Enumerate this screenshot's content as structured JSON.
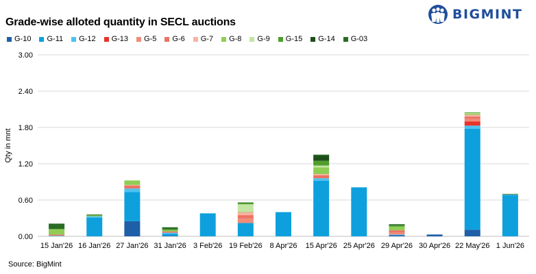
{
  "title": "Grade-wise alloted quantity in SECL auctions",
  "brand": {
    "name": "BIGMINT",
    "logo_icon": "bigmint-people-icon",
    "color": "#1f4e9a"
  },
  "source": "Source: BigMint",
  "chart_data": {
    "type": "bar",
    "stacked": true,
    "ylabel": "Qty in mnt",
    "xlabel": "",
    "ylim": [
      0,
      3.0
    ],
    "yticks": [
      "0.00",
      "0.60",
      "1.20",
      "1.80",
      "2.40",
      "3.00"
    ],
    "ytick_values": [
      0,
      0.6,
      1.2,
      1.8,
      2.4,
      3.0
    ],
    "grid": true,
    "legend_position": "top",
    "categories": [
      "15 Jan'26",
      "16 Jan'26",
      "27 Jan'26",
      "31 Jan'26",
      "3 Feb'26",
      "19 Feb'26",
      "8 Apr'26",
      "15 Apr'26",
      "25 Apr'26",
      "29 Apr'26",
      "30 Apr'26",
      "22 May'26",
      "1 Jun'26"
    ],
    "series": [
      {
        "name": "G-10",
        "color": "#1f5fa8",
        "values": [
          0,
          0,
          0.25,
          0.01,
          0,
          0,
          0,
          0,
          0,
          0.02,
          0.03,
          0.11,
          0
        ]
      },
      {
        "name": "G-11",
        "color": "#0ea0dd",
        "values": [
          0,
          0.31,
          0.48,
          0.03,
          0.38,
          0.22,
          0.4,
          0.92,
          0.81,
          0,
          0,
          1.67,
          0.68
        ]
      },
      {
        "name": "G-12",
        "color": "#4dc2f0",
        "values": [
          0.01,
          0.02,
          0.06,
          0.02,
          0,
          0,
          0,
          0.04,
          0,
          0.01,
          0,
          0.05,
          0.01
        ]
      },
      {
        "name": "G-13",
        "color": "#e8332a",
        "values": [
          0,
          0,
          0,
          0,
          0,
          0,
          0,
          0,
          0,
          0,
          0,
          0.07,
          0
        ]
      },
      {
        "name": "G-5",
        "color": "#f08c7a",
        "values": [
          0,
          0,
          0,
          0,
          0,
          0.08,
          0,
          0,
          0,
          0.03,
          0,
          0.04,
          0
        ]
      },
      {
        "name": "G-6",
        "color": "#ec7362",
        "values": [
          0.02,
          0,
          0.05,
          0.02,
          0,
          0.05,
          0,
          0.05,
          0,
          0.04,
          0,
          0.04,
          0
        ]
      },
      {
        "name": "G-7",
        "color": "#f7b3a3",
        "values": [
          0,
          0,
          0.01,
          0,
          0,
          0.05,
          0,
          0.02,
          0,
          0,
          0,
          0.03,
          0
        ]
      },
      {
        "name": "G-8",
        "color": "#8fcd55",
        "values": [
          0.09,
          0.01,
          0.07,
          0.02,
          0,
          0.01,
          0,
          0.11,
          0,
          0.06,
          0,
          0.02,
          0
        ]
      },
      {
        "name": "G-9",
        "color": "#c3e5a3",
        "values": [
          0,
          0,
          0.01,
          0,
          0,
          0.12,
          0,
          0.03,
          0,
          0,
          0,
          0.01,
          0
        ]
      },
      {
        "name": "G-15",
        "color": "#4f9e2c",
        "values": [
          0,
          0.01,
          0,
          0.02,
          0,
          0.02,
          0,
          0.08,
          0,
          0.02,
          0,
          0.01,
          0
        ]
      },
      {
        "name": "G-14",
        "color": "#1e4d1a",
        "values": [
          0,
          0,
          0,
          0,
          0,
          0,
          0,
          0.08,
          0,
          0,
          0,
          0,
          0
        ]
      },
      {
        "name": "G-03",
        "color": "#2a6b25",
        "values": [
          0.09,
          0.01,
          0,
          0.03,
          0,
          0.01,
          0,
          0.02,
          0,
          0.02,
          0,
          0,
          0.01
        ]
      }
    ]
  }
}
